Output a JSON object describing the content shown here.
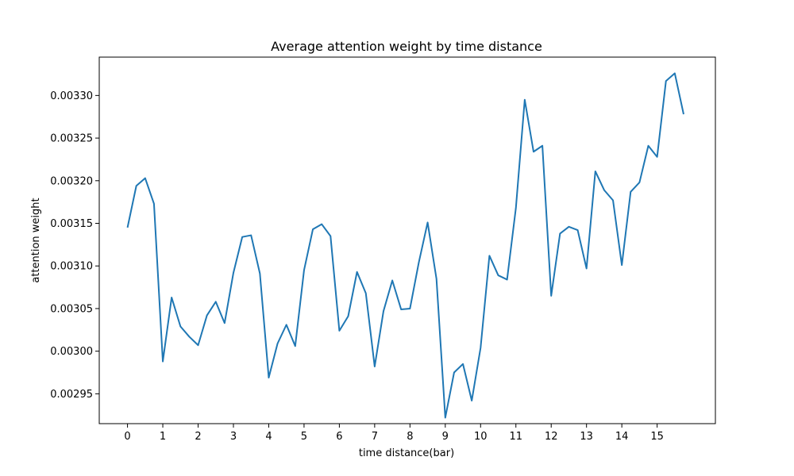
{
  "chart_data": {
    "type": "line",
    "title": "Average attention weight by time distance",
    "xlabel": "time distance(bar)",
    "ylabel": "attention weight",
    "xlim": [
      -0.8,
      16.65
    ],
    "ylim": [
      0.002915,
      0.003345
    ],
    "x_ticks": [
      0,
      1,
      2,
      3,
      4,
      5,
      6,
      7,
      8,
      9,
      10,
      11,
      12,
      13,
      14,
      15
    ],
    "x_tick_labels": [
      "0",
      "1",
      "2",
      "3",
      "4",
      "5",
      "6",
      "7",
      "8",
      "9",
      "10",
      "11",
      "12",
      "13",
      "14",
      "15"
    ],
    "y_ticks": [
      0.00295,
      0.003,
      0.00305,
      0.0031,
      0.00315,
      0.0032,
      0.00325,
      0.0033
    ],
    "y_tick_labels": [
      "0.00295",
      "0.00300",
      "0.00305",
      "0.00310",
      "0.00315",
      "0.00320",
      "0.00325",
      "0.00330"
    ],
    "grid": false,
    "series": [
      {
        "name": "attention",
        "color": "#1f77b4",
        "x": [
          0,
          0.25,
          0.5,
          0.75,
          1,
          1.25,
          1.5,
          1.75,
          2,
          2.25,
          2.5,
          2.75,
          3,
          3.25,
          3.5,
          3.75,
          4,
          4.25,
          4.5,
          4.75,
          5,
          5.25,
          5.5,
          5.75,
          6,
          6.25,
          6.5,
          6.75,
          7,
          7.25,
          7.5,
          7.75,
          8,
          8.25,
          8.5,
          8.75,
          9,
          9.25,
          9.5,
          9.75,
          10,
          10.25,
          10.5,
          10.75,
          11,
          11.25,
          11.5,
          11.75,
          12,
          12.25,
          12.5,
          12.75,
          13,
          13.25,
          13.5,
          13.75,
          14,
          14.25,
          14.5,
          14.75,
          15,
          15.25,
          15.5,
          15.75
        ],
        "values": [
          0.003145,
          0.003194,
          0.003203,
          0.003173,
          0.002988,
          0.003063,
          0.003029,
          0.003017,
          0.003007,
          0.003042,
          0.003058,
          0.003033,
          0.003092,
          0.003134,
          0.003136,
          0.003091,
          0.002969,
          0.003009,
          0.003031,
          0.003006,
          0.003095,
          0.003143,
          0.003149,
          0.003135,
          0.003024,
          0.003041,
          0.003093,
          0.003068,
          0.002982,
          0.003047,
          0.003083,
          0.003049,
          0.00305,
          0.003104,
          0.003151,
          0.003085,
          0.002922,
          0.002975,
          0.002985,
          0.002942,
          0.003004,
          0.003112,
          0.003089,
          0.003084,
          0.003168,
          0.003295,
          0.003234,
          0.003241,
          0.003065,
          0.003138,
          0.003146,
          0.003142,
          0.003097,
          0.003211,
          0.003189,
          0.003177,
          0.003101,
          0.003187,
          0.003198,
          0.003241,
          0.003228,
          0.003317,
          0.003326,
          0.003278
        ]
      }
    ]
  }
}
